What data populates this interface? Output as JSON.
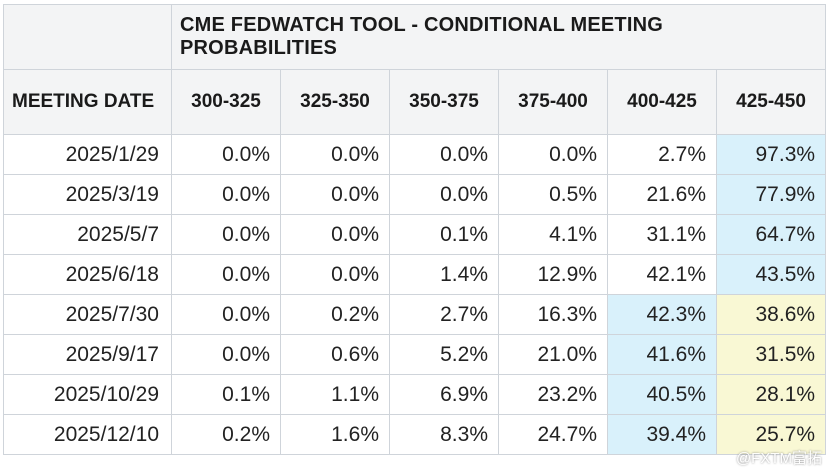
{
  "title": "CME FEDWATCH TOOL - CONDITIONAL MEETING PROBABILITIES",
  "row_header_label": "MEETING DATE",
  "columns": [
    "300-325",
    "325-350",
    "350-375",
    "375-400",
    "400-425",
    "425-450"
  ],
  "rows": [
    {
      "date": "2025/1/29",
      "values": [
        "0.0%",
        "0.0%",
        "0.0%",
        "0.0%",
        "2.7%",
        "97.3%"
      ]
    },
    {
      "date": "2025/3/19",
      "values": [
        "0.0%",
        "0.0%",
        "0.0%",
        "0.5%",
        "21.6%",
        "77.9%"
      ]
    },
    {
      "date": "2025/5/7",
      "values": [
        "0.0%",
        "0.0%",
        "0.1%",
        "4.1%",
        "31.1%",
        "64.7%"
      ]
    },
    {
      "date": "2025/6/18",
      "values": [
        "0.0%",
        "0.0%",
        "1.4%",
        "12.9%",
        "42.1%",
        "43.5%"
      ]
    },
    {
      "date": "2025/7/30",
      "values": [
        "0.0%",
        "0.2%",
        "2.7%",
        "16.3%",
        "42.3%",
        "38.6%"
      ]
    },
    {
      "date": "2025/9/17",
      "values": [
        "0.0%",
        "0.6%",
        "5.2%",
        "21.0%",
        "41.6%",
        "31.5%"
      ]
    },
    {
      "date": "2025/10/29",
      "values": [
        "0.1%",
        "1.1%",
        "6.9%",
        "23.2%",
        "40.5%",
        "28.1%"
      ]
    },
    {
      "date": "2025/12/10",
      "values": [
        "0.2%",
        "1.6%",
        "8.3%",
        "24.7%",
        "39.4%",
        "25.7%"
      ]
    }
  ],
  "highlight_colors": {
    "primary": "#d9f1fb",
    "secondary": "#f9f8d4"
  },
  "watermark": "@FXTM富拓"
}
